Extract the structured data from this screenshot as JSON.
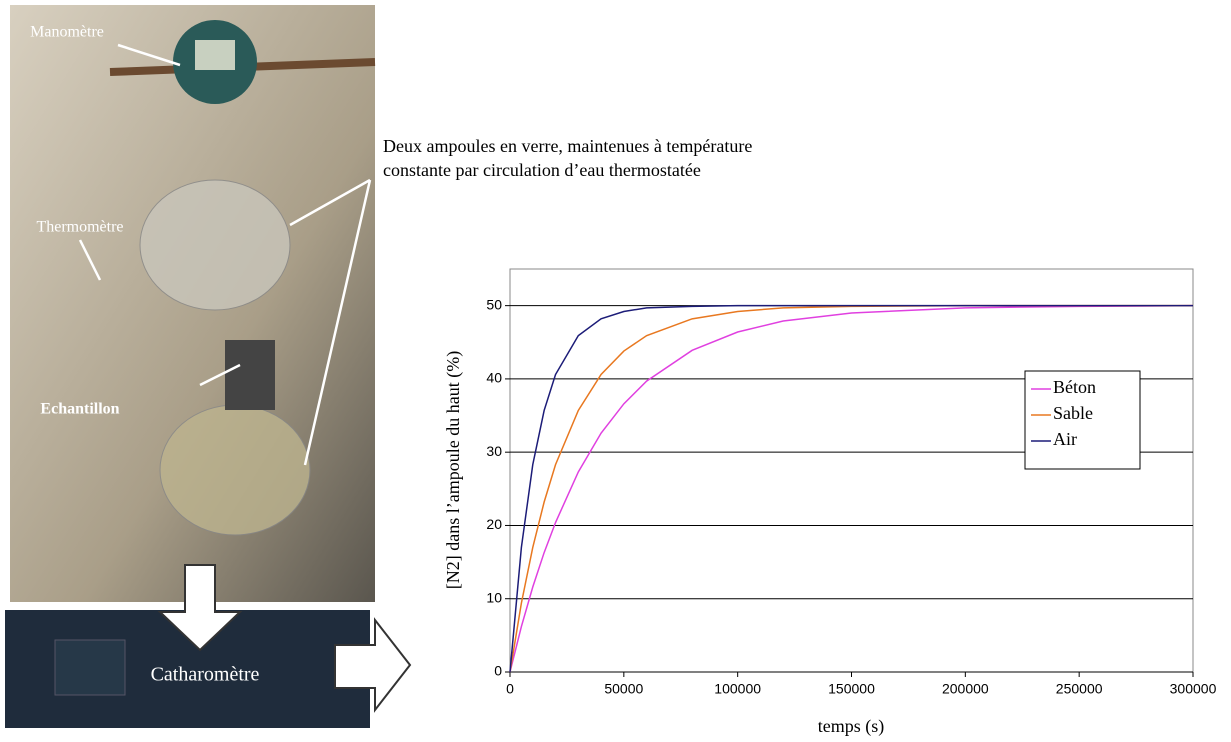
{
  "chart_data": {
    "type": "line",
    "x_label": "temps (s)",
    "y_label": "[N2] dans l’ampoule du haut (%)",
    "x": [
      0,
      5000,
      10000,
      15000,
      20000,
      30000,
      40000,
      50000,
      60000,
      80000,
      100000,
      120000,
      150000,
      200000,
      250000,
      300000
    ],
    "series": [
      {
        "name": "Béton",
        "color": "#e040e0",
        "values": [
          0,
          6.2,
          11.6,
          16.3,
          20.4,
          27.3,
          32.6,
          36.6,
          39.7,
          43.9,
          46.4,
          47.9,
          49.0,
          49.7,
          49.9,
          50
        ]
      },
      {
        "name": "Sable",
        "color": "#e87820",
        "values": [
          0,
          9.4,
          17.0,
          23.2,
          28.3,
          35.7,
          40.6,
          43.8,
          45.9,
          48.2,
          49.2,
          49.7,
          49.9,
          50,
          50,
          50
        ]
      },
      {
        "name": "Air",
        "color": "#1c1c78",
        "values": [
          0,
          17.0,
          28.3,
          35.7,
          40.6,
          45.9,
          48.2,
          49.2,
          49.7,
          49.9,
          50,
          50,
          50,
          50,
          50,
          50
        ]
      }
    ],
    "xlim": [
      0,
      300000
    ],
    "xticks": [
      0,
      50000,
      100000,
      150000,
      200000,
      250000,
      300000
    ],
    "ylim": [
      0,
      55
    ],
    "yticks": [
      0,
      10,
      20,
      30,
      40,
      50
    ],
    "grid": true,
    "legend": "right"
  },
  "photo": {
    "labels": [
      "Manomètre",
      "Thermomètre",
      "Echantillon",
      "Catharomètre"
    ]
  },
  "caption": {
    "lines": [
      "Deux ampoules en verre, maintenues à température",
      "constante par circulation d’eau thermostatée"
    ]
  }
}
